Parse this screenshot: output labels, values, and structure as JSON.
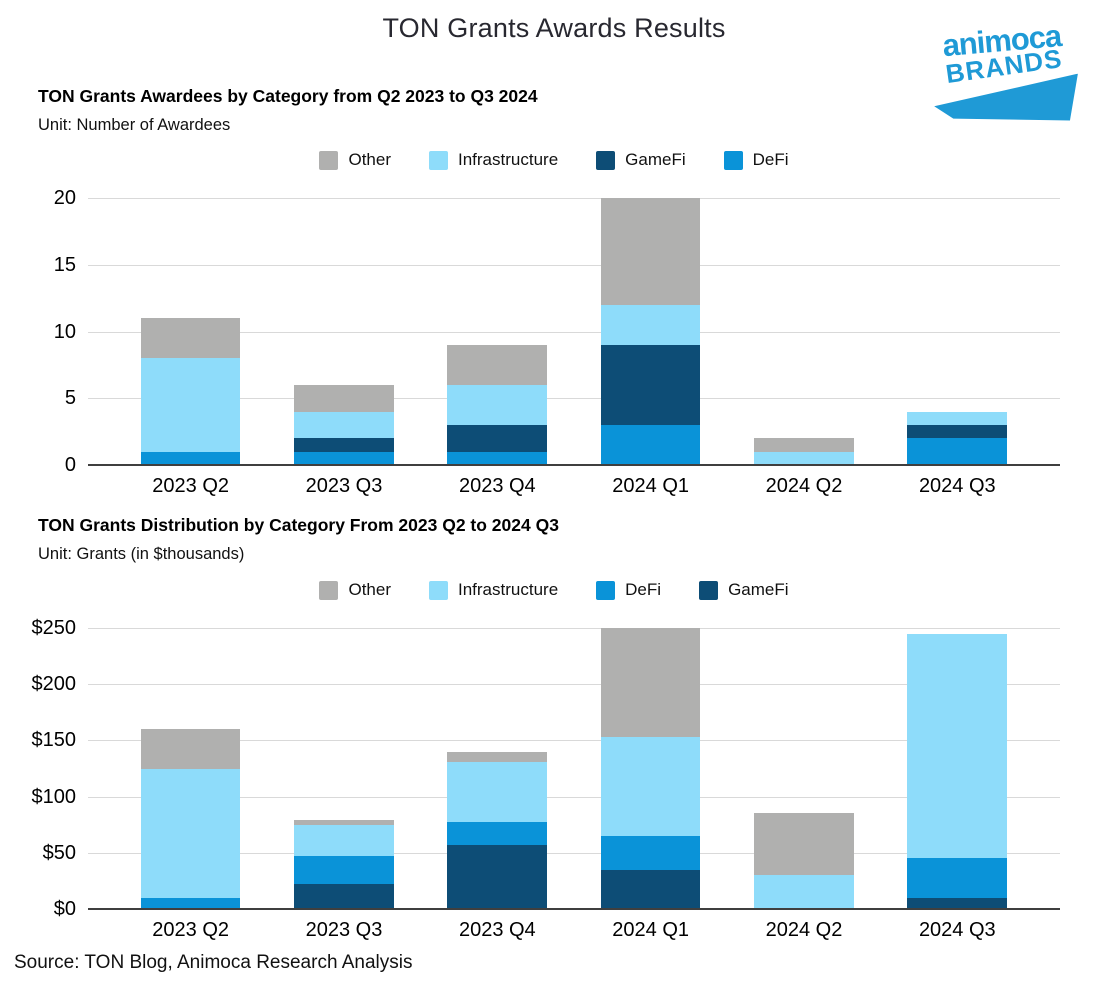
{
  "page": {
    "title": "TON Grants Awards Results",
    "source": "Source: TON Blog, Animoca Research Analysis"
  },
  "logo": {
    "line1": "animoca",
    "line2": "BRANDS",
    "color": "#1f9ad6"
  },
  "chart_data": [
    {
      "type": "bar",
      "stacked": true,
      "title": "TON Grants Awardees by Category from Q2 2023 to Q3 2024",
      "unit_label": "Unit: Number of Awardees",
      "categories": [
        "2023 Q2",
        "2023 Q3",
        "2023 Q4",
        "2024 Q1",
        "2024 Q2",
        "2024 Q3"
      ],
      "series": [
        {
          "name": "DeFi",
          "color": "#0a93d8",
          "values": [
            1,
            1,
            1,
            3,
            0,
            2
          ]
        },
        {
          "name": "GameFi",
          "color": "#0d4d76",
          "values": [
            0,
            1,
            2,
            6,
            0,
            1
          ]
        },
        {
          "name": "Infrastructure",
          "color": "#8edcfa",
          "values": [
            7,
            2,
            3,
            3,
            1,
            1
          ]
        },
        {
          "name": "Other",
          "color": "#b0b0af",
          "values": [
            3,
            2,
            3,
            8,
            1,
            0
          ]
        }
      ],
      "totals": [
        11,
        6,
        9,
        20,
        2,
        4
      ],
      "legend": [
        "Other",
        "Infrastructure",
        "GameFi",
        "DeFi"
      ],
      "legend_position": "top-center",
      "grid": true,
      "ylim": [
        0,
        20
      ],
      "yticks": [
        {
          "value": 20,
          "label": "20"
        },
        {
          "value": 15,
          "label": "15"
        },
        {
          "value": 10,
          "label": "10"
        },
        {
          "value": 5,
          "label": "5"
        },
        {
          "value": 0,
          "label": "0"
        }
      ]
    },
    {
      "type": "bar",
      "stacked": true,
      "title": "TON Grants Distribution by Category From 2023 Q2 to 2024 Q3",
      "unit_label": "Unit: Grants (in $thousands)",
      "categories": [
        "2023 Q2",
        "2023 Q3",
        "2023 Q4",
        "2024 Q1",
        "2024 Q2",
        "2024 Q3"
      ],
      "series": [
        {
          "name": "GameFi",
          "color": "#0d4d76",
          "values": [
            0,
            22,
            57,
            35,
            0,
            10
          ]
        },
        {
          "name": "DeFi",
          "color": "#0a93d8",
          "values": [
            10,
            25,
            20,
            30,
            0,
            35
          ]
        },
        {
          "name": "Infrastructure",
          "color": "#8edcfa",
          "values": [
            115,
            28,
            54,
            88,
            30,
            200
          ]
        },
        {
          "name": "Other",
          "color": "#b0b0af",
          "values": [
            35,
            4,
            9,
            97,
            55,
            0
          ]
        }
      ],
      "totals": [
        160,
        79,
        140,
        250,
        85,
        245
      ],
      "legend": [
        "Other",
        "Infrastructure",
        "DeFi",
        "GameFi"
      ],
      "legend_position": "top-center",
      "grid": true,
      "ylim": [
        0,
        250
      ],
      "yticks": [
        {
          "value": 250,
          "label": "$250"
        },
        {
          "value": 200,
          "label": "$200"
        },
        {
          "value": 150,
          "label": "$150"
        },
        {
          "value": 100,
          "label": "$100"
        },
        {
          "value": 50,
          "label": "$50"
        },
        {
          "value": 0,
          "label": "$0"
        }
      ]
    }
  ]
}
